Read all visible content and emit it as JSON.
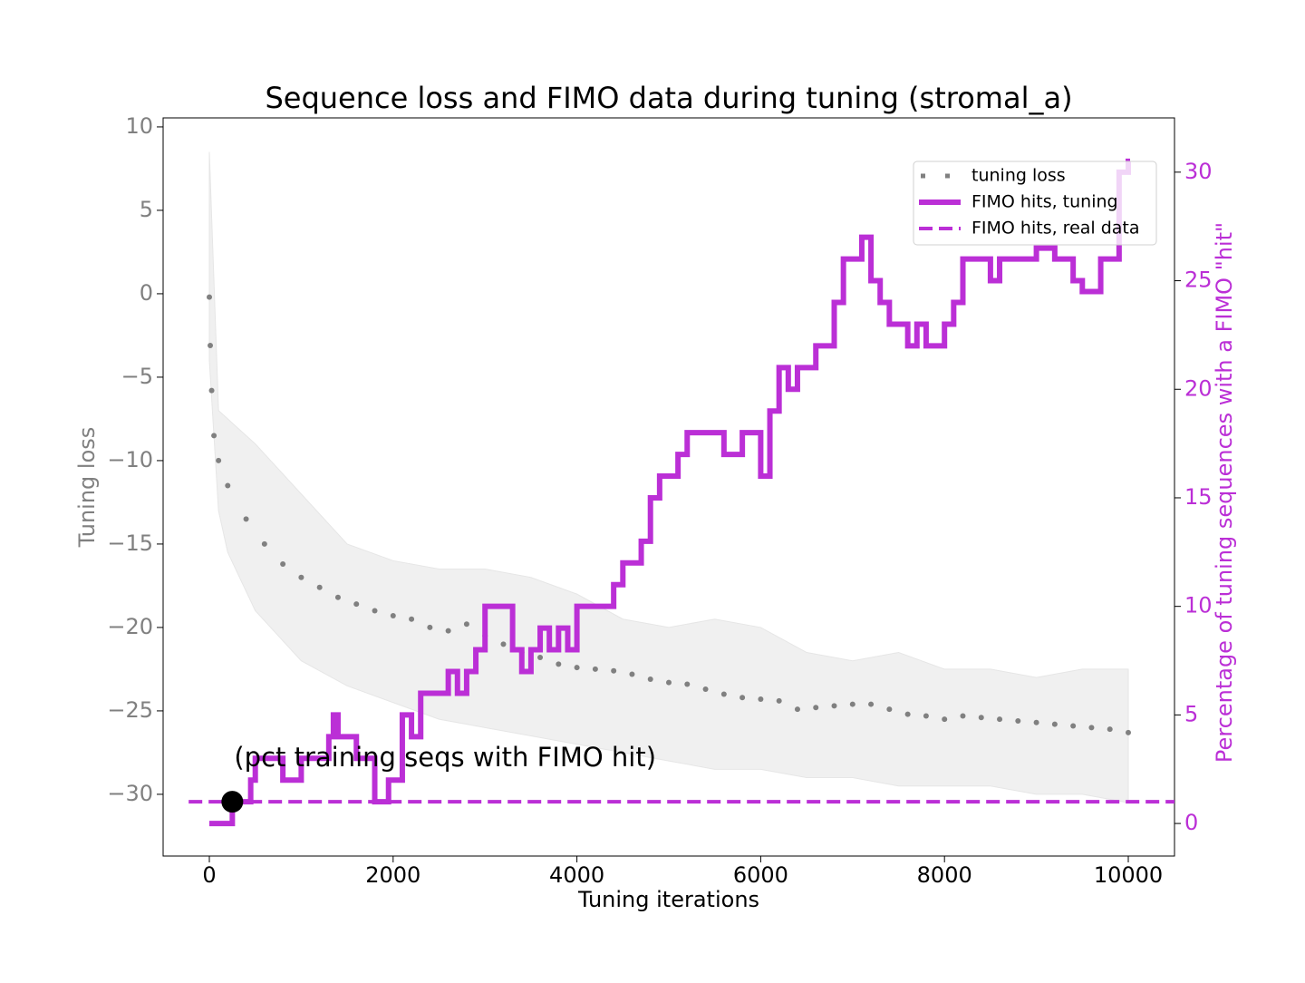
{
  "chart_data": {
    "type": "line",
    "title": "Sequence loss and FIMO data during tuning (stromal_a)",
    "xlabel": "Tuning iterations",
    "ylabel": "Tuning loss",
    "y2label": "Percentage of tuning sequences with a FIMO \"hit\"",
    "xlim": [
      -503,
      10503
    ],
    "xticks": [
      0,
      2000,
      4000,
      6000,
      8000,
      10000
    ],
    "ylim": [
      -33.7,
      10.54
    ],
    "yticks": [
      {
        "value": -30,
        "label": "−30"
      },
      {
        "value": -25,
        "label": "−25"
      },
      {
        "value": -20,
        "label": "−20"
      },
      {
        "value": -15,
        "label": "−15"
      },
      {
        "value": -10,
        "label": "−10"
      },
      {
        "value": -5,
        "label": "−5"
      },
      0,
      5,
      10
    ],
    "y2lim": [
      -1.5,
      32.5
    ],
    "y2ticks": [
      0,
      5,
      10,
      15,
      20,
      25,
      30
    ],
    "ylabel_color": "#808080",
    "y2label_color": "#bb2fd6",
    "band": {
      "color": "#f0f0f0",
      "x": [
        0,
        100,
        200,
        500,
        1000,
        1500,
        2000,
        2500,
        3000,
        3500,
        4000,
        4500,
        5000,
        5500,
        6000,
        6500,
        7000,
        7500,
        8000,
        8500,
        9000,
        9500,
        10000
      ],
      "upper": [
        8.5,
        -7,
        -7.5,
        -9,
        -12,
        -15,
        -16,
        -16.5,
        -16.5,
        -17,
        -18,
        -19.5,
        -20,
        -19.5,
        -20,
        -21.5,
        -22,
        -21.5,
        -22.5,
        -22.5,
        -23,
        -22.5,
        -22.5
      ],
      "lower": [
        -4,
        -13,
        -15.5,
        -19,
        -22,
        -23.5,
        -24.5,
        -25.5,
        -26,
        -26.5,
        -27,
        -27.5,
        -28,
        -28.5,
        -28.5,
        -29,
        -29,
        -29.5,
        -29.5,
        -29.5,
        -30,
        -30,
        -30.5
      ]
    },
    "series": [
      {
        "name": "tuning loss",
        "color": "#808080",
        "style": "dotted",
        "x": [
          0,
          10,
          25,
          50,
          100,
          200,
          400,
          600,
          800,
          1000,
          1200,
          1400,
          1600,
          1800,
          2000,
          2200,
          2400,
          2600,
          2800,
          3000,
          3200,
          3400,
          3600,
          3800,
          4000,
          4200,
          4400,
          4600,
          4800,
          5000,
          5200,
          5400,
          5600,
          5800,
          6000,
          6200,
          6400,
          6600,
          6800,
          7000,
          7200,
          7400,
          7600,
          7800,
          8000,
          8200,
          8400,
          8600,
          8800,
          9000,
          9200,
          9400,
          9600,
          9800,
          10000
        ],
        "values": [
          -0.2,
          -3.1,
          -5.8,
          -8.5,
          -10,
          -11.5,
          -13.5,
          -15,
          -16.2,
          -17,
          -17.6,
          -18.2,
          -18.6,
          -19,
          -19.3,
          -19.5,
          -20,
          -20.2,
          -19.8,
          -20.5,
          -21,
          -21.5,
          -21.8,
          -22.2,
          -22.4,
          -22.5,
          -22.6,
          -22.8,
          -23.1,
          -23.3,
          -23.4,
          -23.7,
          -24,
          -24.2,
          -24.3,
          -24.4,
          -24.9,
          -24.8,
          -24.7,
          -24.6,
          -24.6,
          -24.9,
          -25.2,
          -25.3,
          -25.5,
          -25.3,
          -25.4,
          -25.5,
          -25.6,
          -25.7,
          -25.8,
          -25.9,
          -26,
          -26.1,
          -26.3
        ]
      },
      {
        "name": "FIMO hits, tuning",
        "color": "#bb2fd6",
        "style": "step",
        "axis": "y2",
        "x": [
          0,
          250,
          300,
          450,
          500,
          700,
          800,
          1000,
          1100,
          1300,
          1350,
          1400,
          1500,
          1600,
          1800,
          1950,
          2100,
          2200,
          2300,
          2500,
          2600,
          2700,
          2800,
          2900,
          3000,
          3100,
          3300,
          3400,
          3500,
          3600,
          3700,
          3800,
          3900,
          4000,
          4200,
          4400,
          4500,
          4600,
          4700,
          4800,
          4900,
          5000,
          5100,
          5200,
          5400,
          5600,
          5800,
          6000,
          6100,
          6200,
          6300,
          6400,
          6600,
          6700,
          6800,
          6900,
          7000,
          7100,
          7200,
          7300,
          7400,
          7600,
          7700,
          7800,
          8000,
          8100,
          8200,
          8400,
          8500,
          8600,
          8800,
          9000,
          9200,
          9400,
          9500,
          9700,
          9800,
          9900,
          10000
        ],
        "values": [
          0,
          1,
          1,
          2,
          3,
          3,
          2,
          3,
          3,
          4,
          5,
          4,
          4,
          3,
          1,
          2,
          5,
          4,
          6,
          6,
          7,
          6,
          7,
          8,
          10,
          10,
          8,
          7,
          8,
          9,
          8,
          9,
          8,
          10,
          10,
          11,
          12,
          12,
          13,
          15,
          16,
          16,
          17,
          18,
          18,
          17,
          18,
          16,
          19,
          21,
          20,
          21,
          22,
          22,
          24,
          26,
          26,
          27,
          25,
          24,
          23,
          22,
          23,
          22,
          23,
          24,
          26,
          26,
          25,
          26,
          26,
          26.5,
          26,
          25,
          24.5,
          26,
          26,
          30,
          30.5
        ]
      },
      {
        "name": "FIMO hits, real data",
        "color": "#bb2fd6",
        "style": "dashed",
        "axis": "y2",
        "x": [
          -225,
          10503
        ],
        "values": [
          1,
          1
        ]
      }
    ],
    "annotation": {
      "text": "(pct training seqs with FIMO hit)",
      "x": 250,
      "y": 1,
      "axis": "y2",
      "color": "#000000"
    },
    "legend": "upper right"
  }
}
